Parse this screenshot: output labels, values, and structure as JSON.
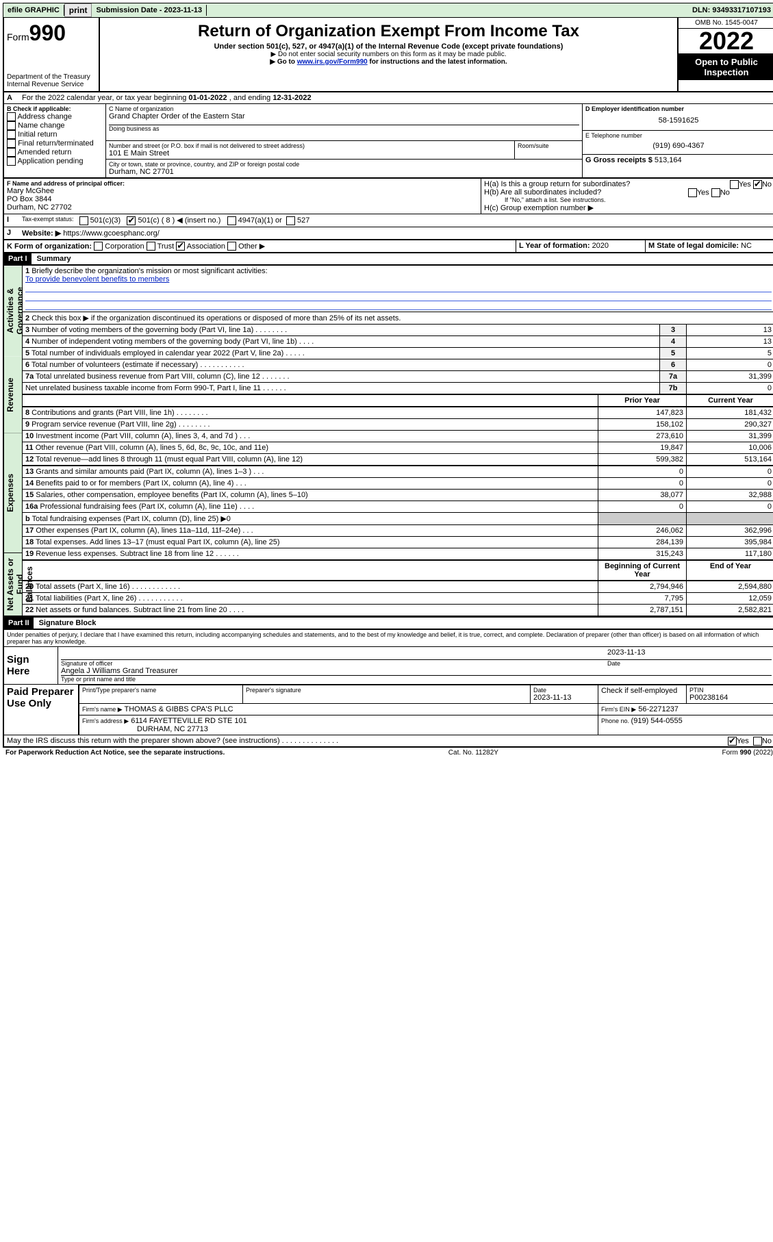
{
  "topbar": {
    "efile": "efile GRAPHIC",
    "print": "print",
    "sub_label": "Submission Date - ",
    "sub_date": "2023-11-13",
    "dln_label": "DLN: ",
    "dln": "93493317107193"
  },
  "header": {
    "form_word": "Form",
    "form_num": "990",
    "dept": "Department of the Treasury",
    "irs": "Internal Revenue Service",
    "title": "Return of Organization Exempt From Income Tax",
    "sub": "Under section 501(c), 527, or 4947(a)(1) of the Internal Revenue Code (except private foundations)",
    "note1": "▶ Do not enter social security numbers on this form as it may be made public.",
    "note2_pre": "▶ Go to ",
    "note2_link": "www.irs.gov/Form990",
    "note2_post": " for instructions and the latest information.",
    "omb": "OMB No. 1545-0047",
    "year": "2022",
    "inspect1": "Open to Public",
    "inspect2": "Inspection"
  },
  "lineA": {
    "text_pre": "For the 2022 calendar year, or tax year beginning ",
    "begin": "01-01-2022",
    "mid": " , and ending ",
    "end": "12-31-2022"
  },
  "boxB": {
    "label": "B Check if applicable:",
    "opts": [
      "Address change",
      "Name change",
      "Initial return",
      "Final return/terminated",
      "Amended return",
      "Application pending"
    ]
  },
  "boxC": {
    "label": "C Name of organization",
    "name": "Grand Chapter Order of the Eastern Star",
    "dba_label": "Doing business as",
    "street_label": "Number and street (or P.O. box if mail is not delivered to street address)",
    "room_label": "Room/suite",
    "street": "101 E Main Street",
    "city_label": "City or town, state or province, country, and ZIP or foreign postal code",
    "city": "Durham, NC  27701"
  },
  "boxD": {
    "label": "D Employer identification number",
    "val": "58-1591625"
  },
  "boxE": {
    "label": "E Telephone number",
    "val": "(919) 690-4367"
  },
  "boxG": {
    "label": "G Gross receipts $ ",
    "val": "513,164"
  },
  "boxF": {
    "label": "F Name and address of principal officer:",
    "name": "Mary McGhee",
    "po": "PO Box 3844",
    "city": "Durham, NC  27702"
  },
  "boxH": {
    "a": "H(a)  Is this a group return for subordinates?",
    "b": "H(b)  Are all subordinates included?",
    "b_note": "If \"No,\" attach a list. See instructions.",
    "c": "H(c)  Group exemption number ▶",
    "yes": "Yes",
    "no": "No"
  },
  "lineI": {
    "label": "Tax-exempt status:",
    "o1": "501(c)(3)",
    "o2": "501(c) ( 8 ) ◀ (insert no.)",
    "o3": "4947(a)(1) or",
    "o4": "527"
  },
  "lineJ": {
    "label": "Website: ▶",
    "val": "https://www.gcoesphanc.org/"
  },
  "lineK": {
    "label": "K Form of organization:",
    "opts": [
      "Corporation",
      "Trust",
      "Association",
      "Other ▶"
    ]
  },
  "lineL": {
    "label": "L Year of formation: ",
    "val": "2020"
  },
  "lineM": {
    "label": "M State of legal domicile: ",
    "val": "NC"
  },
  "partI": {
    "tag": "Part I",
    "title": "Summary"
  },
  "summary": {
    "q1": "Briefly describe the organization's mission or most significant activities:",
    "q1_ans": "To provide benevolent benefits to members",
    "q2": "Check this box ▶        if the organization discontinued its operations or disposed of more than 25% of its net assets.",
    "rows_gov": [
      {
        "n": "3",
        "d": "Number of voting members of the governing body (Part VI, line 1a)   .    .    .    .    .    .    .    .",
        "k": "3",
        "v": "13"
      },
      {
        "n": "4",
        "d": "Number of independent voting members of the governing body (Part VI, line 1b)   .   .   .   .",
        "k": "4",
        "v": "13"
      },
      {
        "n": "5",
        "d": "Total number of individuals employed in calendar year 2022 (Part V, line 2a)   .   .   .   .   .",
        "k": "5",
        "v": "5"
      },
      {
        "n": "6",
        "d": "Total number of volunteers (estimate if necessary)   .   .   .   .   .   .   .   .   .   .   .",
        "k": "6",
        "v": "0"
      },
      {
        "n": "7a",
        "d": "Total unrelated business revenue from Part VIII, column (C), line 12   .   .   .   .   .   .   .",
        "k": "7a",
        "v": "31,399"
      },
      {
        "n": "",
        "d": "Net unrelated business taxable income from Form 990-T, Part I, line 11   .   .   .   .   .   .",
        "k": "7b",
        "v": "0"
      }
    ],
    "hdr_prior": "Prior Year",
    "hdr_curr": "Current Year",
    "rows_rev": [
      {
        "n": "8",
        "d": "Contributions and grants (Part VIII, line 1h)   .   .   .   .   .   .   .   .",
        "p": "147,823",
        "c": "181,432"
      },
      {
        "n": "9",
        "d": "Program service revenue (Part VIII, line 2g)   .   .   .   .   .   .   .   .",
        "p": "158,102",
        "c": "290,327"
      },
      {
        "n": "10",
        "d": "Investment income (Part VIII, column (A), lines 3, 4, and 7d )   .   .   .",
        "p": "273,610",
        "c": "31,399"
      },
      {
        "n": "11",
        "d": "Other revenue (Part VIII, column (A), lines 5, 6d, 8c, 9c, 10c, and 11e)",
        "p": "19,847",
        "c": "10,006"
      },
      {
        "n": "12",
        "d": "Total revenue—add lines 8 through 11 (must equal Part VIII, column (A), line 12)",
        "p": "599,382",
        "c": "513,164"
      }
    ],
    "rows_exp": [
      {
        "n": "13",
        "d": "Grants and similar amounts paid (Part IX, column (A), lines 1–3 )   .   .   .",
        "p": "0",
        "c": "0"
      },
      {
        "n": "14",
        "d": "Benefits paid to or for members (Part IX, column (A), line 4)   .   .   .",
        "p": "0",
        "c": "0"
      },
      {
        "n": "15",
        "d": "Salaries, other compensation, employee benefits (Part IX, column (A), lines 5–10)",
        "p": "38,077",
        "c": "32,988"
      },
      {
        "n": "16a",
        "d": "Professional fundraising fees (Part IX, column (A), line 11e)   .   .   .   .",
        "p": "0",
        "c": "0"
      },
      {
        "n": "b",
        "d": "Total fundraising expenses (Part IX, column (D), line 25) ▶0",
        "p": "",
        "c": ""
      },
      {
        "n": "17",
        "d": "Other expenses (Part IX, column (A), lines 11a–11d, 11f–24e)   .   .   .",
        "p": "246,062",
        "c": "362,996"
      },
      {
        "n": "18",
        "d": "Total expenses. Add lines 13–17 (must equal Part IX, column (A), line 25)",
        "p": "284,139",
        "c": "395,984"
      },
      {
        "n": "19",
        "d": "Revenue less expenses. Subtract line 18 from line 12   .   .   .   .   .   .",
        "p": "315,243",
        "c": "117,180"
      }
    ],
    "hdr_boy": "Beginning of Current Year",
    "hdr_eoy": "End of Year",
    "rows_net": [
      {
        "n": "20",
        "d": "Total assets (Part X, line 16)   .   .   .   .   .   .   .   .   .   .   .   .",
        "p": "2,794,946",
        "c": "2,594,880"
      },
      {
        "n": "21",
        "d": "Total liabilities (Part X, line 26)   .   .   .   .   .   .   .   .   .   .   .",
        "p": "7,795",
        "c": "12,059"
      },
      {
        "n": "22",
        "d": "Net assets or fund balances. Subtract line 21 from line 20   .   .   .   .",
        "p": "2,787,151",
        "c": "2,582,821"
      }
    ],
    "side_gov": "Activities & Governance",
    "side_rev": "Revenue",
    "side_exp": "Expenses",
    "side_net": "Net Assets or Fund Balances"
  },
  "partII": {
    "tag": "Part II",
    "title": "Signature Block"
  },
  "sig": {
    "perjury": "Under penalties of perjury, I declare that I have examined this return, including accompanying schedules and statements, and to the best of my knowledge and belief, it is true, correct, and complete. Declaration of preparer (other than officer) is based on all information of which preparer has any knowledge.",
    "signhere": "Sign Here",
    "sig_officer": "Signature of officer",
    "date": "Date",
    "sig_date": "2023-11-13",
    "name": "Angela J Williams Grand Treasurer",
    "name_label": "Type or print name and title",
    "paid": "Paid Preparer Use Only",
    "p_name_label": "Print/Type preparer's name",
    "p_sig_label": "Preparer's signature",
    "p_date_label": "Date",
    "p_date": "2023-11-13",
    "p_check": "Check         if self-employed",
    "ptin_label": "PTIN",
    "ptin": "P00238164",
    "firm_name_label": "Firm's name     ▶",
    "firm_name": "THOMAS & GIBBS CPA'S PLLC",
    "firm_ein_label": "Firm's EIN ▶",
    "firm_ein": "56-2271237",
    "firm_addr_label": "Firm's address ▶",
    "firm_addr1": "6114 FAYETTEVILLE RD STE 101",
    "firm_addr2": "DURHAM, NC  27713",
    "phone_label": "Phone no. ",
    "phone": "(919) 544-0555",
    "discuss": "May the IRS discuss this return with the preparer shown above? (see instructions)   .   .   .   .   .   .   .   .   .   .   .   .   .   ."
  },
  "footer": {
    "pra": "For Paperwork Reduction Act Notice, see the separate instructions.",
    "cat": "Cat. No. 11282Y",
    "form": "Form 990 (2022)"
  },
  "letters": {
    "A": "A",
    "B": "B",
    "I": "I",
    "J": "J"
  }
}
